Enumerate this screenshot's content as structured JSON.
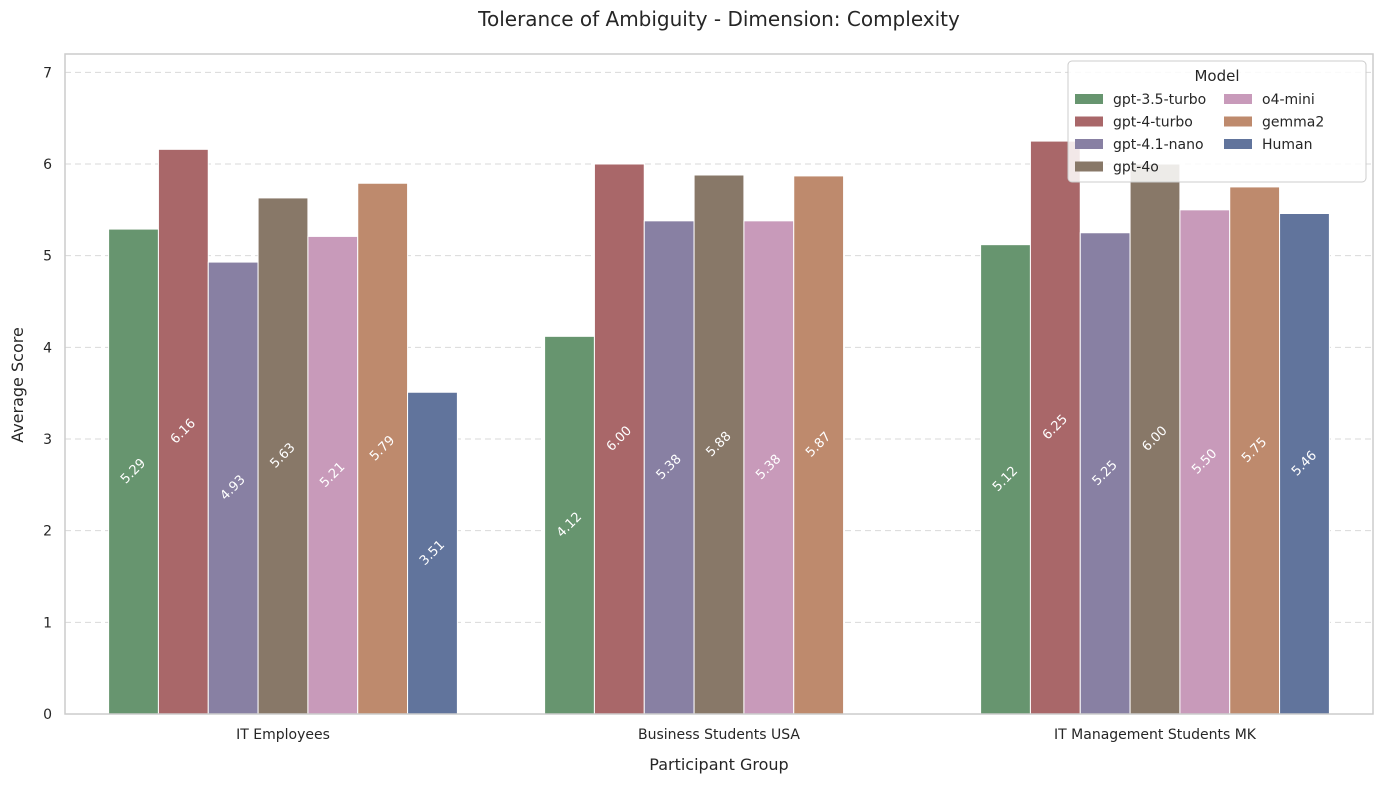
{
  "chart_data": {
    "type": "bar",
    "title": "Tolerance of Ambiguity - Dimension: Complexity",
    "xlabel": "Participant Group",
    "ylabel": "Average Score",
    "ylim": [
      0,
      7.2
    ],
    "yticks": [
      0,
      1,
      2,
      3,
      4,
      5,
      6,
      7
    ],
    "grid": "horizontal dashed",
    "categories": [
      "IT Employees",
      "Business Students USA",
      "IT Management Students MK"
    ],
    "legend": {
      "title": "Model",
      "placement": "top-right",
      "columns": 2
    },
    "series": [
      {
        "name": "gpt-3.5-turbo",
        "color": "#67956f",
        "values": [
          5.29,
          4.12,
          5.12
        ]
      },
      {
        "name": "gpt-4-turbo",
        "color": "#a96769",
        "values": [
          6.16,
          6.0,
          6.25
        ]
      },
      {
        "name": "gpt-4.1-nano",
        "color": "#8880a3",
        "values": [
          4.93,
          5.38,
          5.25
        ]
      },
      {
        "name": "gpt-4o",
        "color": "#887868",
        "values": [
          5.63,
          5.88,
          6.0
        ]
      },
      {
        "name": "o4-mini",
        "color": "#c89aba",
        "values": [
          5.21,
          5.38,
          5.5
        ]
      },
      {
        "name": "gemma2",
        "color": "#be8a6d",
        "values": [
          5.79,
          5.87,
          5.75
        ]
      },
      {
        "name": "Human",
        "color": "#61749c",
        "values": [
          3.51,
          null,
          5.46
        ]
      }
    ]
  }
}
